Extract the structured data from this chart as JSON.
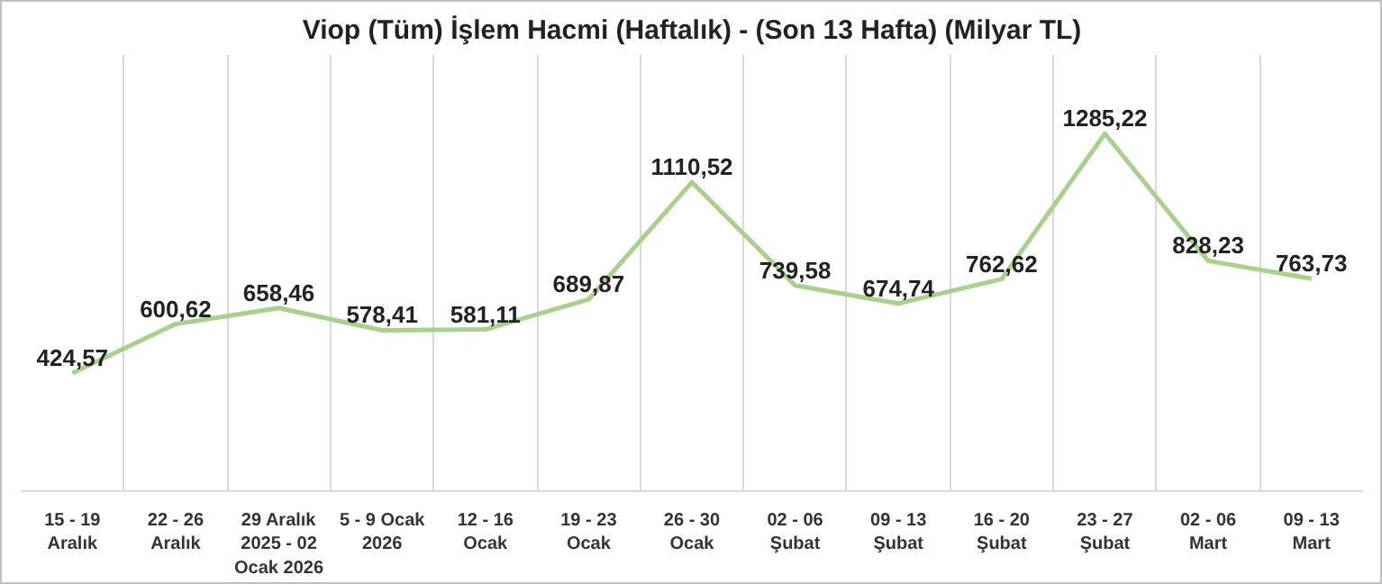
{
  "chart_data": {
    "type": "line",
    "title": "Viop (Tüm) İşlem Hacmi (Haftalık) - (Son 13 Hafta) (Milyar TL)",
    "categories": [
      "15 - 19\nAralık",
      "22 - 26\nAralık",
      "29 Aralık\n2025 - 02\nOcak 2026",
      "5 - 9 Ocak\n2026",
      "12 - 16\nOcak",
      "19 - 23\nOcak",
      "26 - 30\nOcak",
      "02 - 06\nŞubat",
      "09 - 13\nŞubat",
      "16 - 20\nŞubat",
      "23 - 27\nŞubat",
      "02 - 06\nMart",
      "09 - 13\nMart"
    ],
    "series": [
      {
        "color": "#a9d18e",
        "values": [
          424.57,
          600.62,
          658.46,
          578.41,
          581.11,
          689.87,
          1110.52,
          739.58,
          674.74,
          762.62,
          1285.22,
          828.23,
          763.73
        ],
        "value_labels": [
          "424,57",
          "600,62",
          "658,46",
          "578,41",
          "581,11",
          "689,87",
          "1110,52",
          "739,58",
          "674,74",
          "762,62",
          "1285,22",
          "828,23",
          "763,73"
        ]
      }
    ],
    "grid": "x",
    "marker": "none",
    "line_style": "solid",
    "tick_labels": "x"
  }
}
